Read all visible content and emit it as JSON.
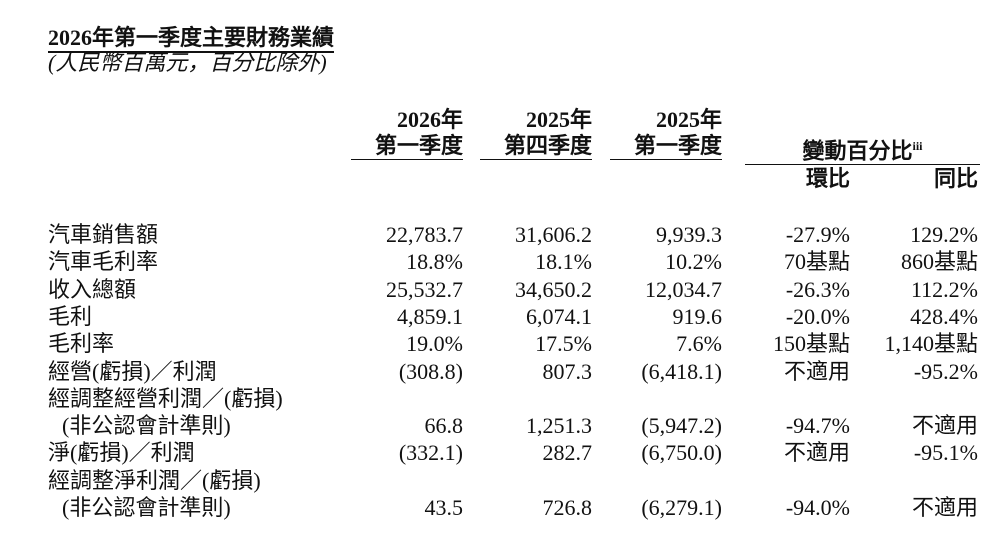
{
  "header": {
    "title": "2026年第一季度主要財務業績",
    "subtitle": "(人民幣百萬元，百分比除外)"
  },
  "table": {
    "columns": [
      {
        "year": "2026年",
        "period": "第一季度"
      },
      {
        "year": "2025年",
        "period": "第四季度"
      },
      {
        "year": "2025年",
        "period": "第一季度"
      }
    ],
    "change_header": {
      "text": "變動百分比",
      "note": "iii"
    },
    "change_columns": [
      "環比",
      "同比"
    ],
    "rows": [
      {
        "label": [
          "汽車銷售額"
        ],
        "cells": [
          "22,783.7",
          "31,606.2",
          "9,939.3",
          "-27.9%",
          "129.2%"
        ]
      },
      {
        "label": [
          "汽車毛利率"
        ],
        "cells": [
          "18.8%",
          "18.1%",
          "10.2%",
          "70基點",
          "860基點"
        ]
      },
      {
        "label": [
          "收入總額"
        ],
        "cells": [
          "25,532.7",
          "34,650.2",
          "12,034.7",
          "-26.3%",
          "112.2%"
        ]
      },
      {
        "label": [
          "毛利"
        ],
        "cells": [
          "4,859.1",
          "6,074.1",
          "919.6",
          "-20.0%",
          "428.4%"
        ]
      },
      {
        "label": [
          "毛利率"
        ],
        "cells": [
          "19.0%",
          "17.5%",
          "7.6%",
          "150基點",
          "1,140基點"
        ]
      },
      {
        "label": [
          "經營(虧損)／利潤"
        ],
        "cells": [
          "(308.8)",
          "807.3",
          "(6,418.1)",
          "不適用",
          "-95.2%"
        ]
      },
      {
        "label": [
          "經調整經營利潤／(虧損)",
          "(非公認會計準則)"
        ],
        "cells": [
          "66.8",
          "1,251.3",
          "(5,947.2)",
          "-94.7%",
          "不適用"
        ]
      },
      {
        "label": [
          "淨(虧損)／利潤"
        ],
        "cells": [
          "(332.1)",
          "282.7",
          "(6,750.0)",
          "不適用",
          "-95.1%"
        ]
      },
      {
        "label": [
          "經調整淨利潤／(虧損)",
          "(非公認會計準則)"
        ],
        "cells": [
          "43.5",
          "726.8",
          "(6,279.1)",
          "-94.0%",
          "不適用"
        ]
      }
    ]
  }
}
